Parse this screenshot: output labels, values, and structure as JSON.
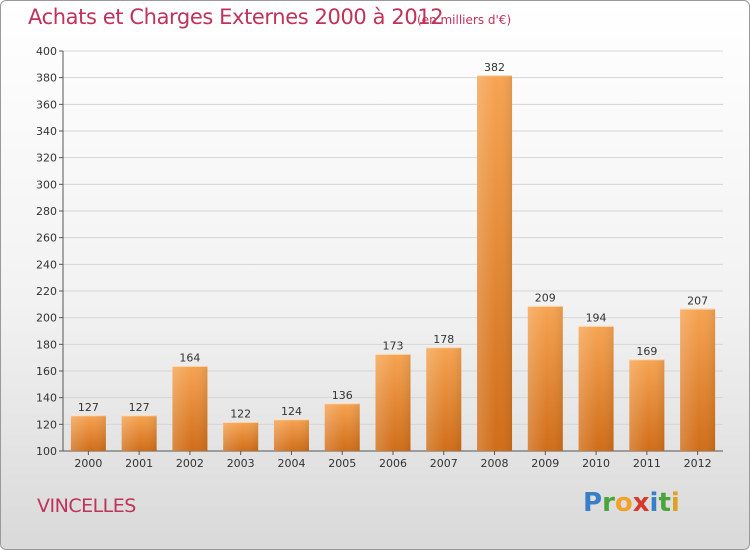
{
  "chart_title": "Achats et Charges Externes 2000 à 2012",
  "chart_subtitle": "(en milliers d'€)",
  "commune": "VINCELLES",
  "logo": {
    "letters": [
      "P",
      "r",
      "o",
      "x",
      "i",
      "t",
      "i"
    ],
    "colors": [
      "#3a7ec8",
      "#4aa53a",
      "#f2a12a",
      "#d63a2a",
      "#3a7ec8",
      "#4aa53a",
      "#e0a020"
    ]
  },
  "colors": {
    "bar_top": "#f6a452",
    "bar_bottom": "#d06d18",
    "text_accent": "#c0325a",
    "grid": "#d6d6d6"
  },
  "chart_data": {
    "type": "bar",
    "categories": [
      "2000",
      "2001",
      "2002",
      "2003",
      "2004",
      "2005",
      "2006",
      "2007",
      "2008",
      "2009",
      "2010",
      "2011",
      "2012"
    ],
    "values": [
      127,
      127,
      164,
      122,
      124,
      136,
      173,
      178,
      382,
      209,
      194,
      169,
      207
    ],
    "data_labels": [
      "127",
      "127",
      "164",
      "122",
      "124",
      "136",
      "173",
      "178",
      "382",
      "209",
      "194",
      "169",
      "207"
    ],
    "yticks": [
      "100",
      "120",
      "140",
      "160",
      "180",
      "200",
      "220",
      "240",
      "260",
      "280",
      "300",
      "320",
      "340",
      "360",
      "380",
      "400"
    ],
    "ylim": [
      100,
      400
    ],
    "grid": true
  }
}
